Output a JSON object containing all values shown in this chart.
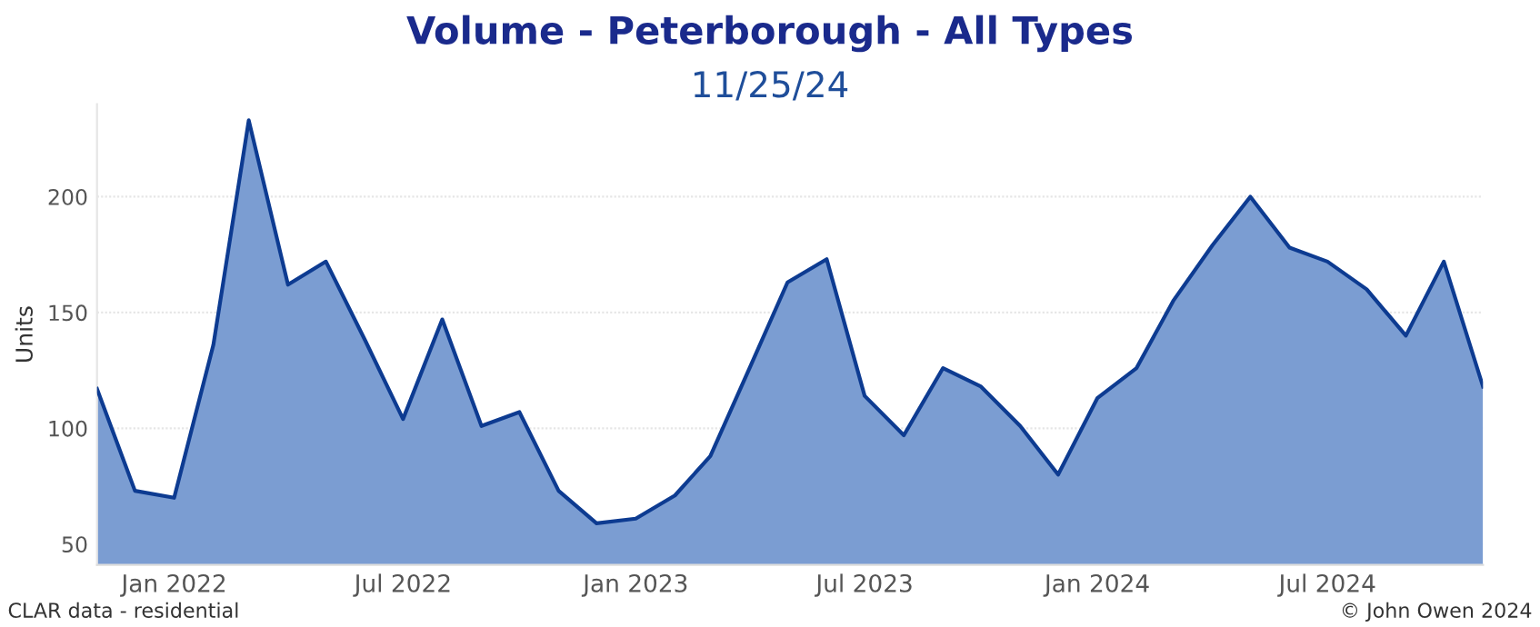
{
  "chart_data": {
    "type": "area",
    "title": "Volume - Peterborough - All Types",
    "subtitle": "11/25/24",
    "ylabel": "Units",
    "x": [
      "2021-11",
      "2021-12",
      "2022-01",
      "2022-02",
      "2022-03",
      "2022-04",
      "2022-05",
      "2022-06",
      "2022-07",
      "2022-08",
      "2022-09",
      "2022-10",
      "2022-11",
      "2022-12",
      "2023-01",
      "2023-02",
      "2023-03",
      "2023-04",
      "2023-05",
      "2023-06",
      "2023-07",
      "2023-08",
      "2023-09",
      "2023-10",
      "2023-11",
      "2023-12",
      "2024-01",
      "2024-02",
      "2024-03",
      "2024-04",
      "2024-05",
      "2024-06",
      "2024-07",
      "2024-08",
      "2024-09",
      "2024-10",
      "2024-11"
    ],
    "series": [
      {
        "color": "#7b9dd2",
        "values": [
          117,
          73,
          70,
          136,
          233,
          162,
          172,
          138,
          104,
          147,
          101,
          107,
          73,
          59,
          61,
          71,
          88,
          126,
          163,
          173,
          114,
          97,
          126,
          118,
          101,
          80,
          113,
          126,
          155,
          179,
          200,
          178,
          172,
          160,
          140,
          172,
          118
        ]
      }
    ],
    "xlim": [
      "2021-11",
      "2024-11"
    ],
    "xticks": [
      {
        "value": "2022-01",
        "label": "Jan 2022"
      },
      {
        "value": "2022-07",
        "label": "Jul 2022"
      },
      {
        "value": "2023-01",
        "label": "Jan 2023"
      },
      {
        "value": "2023-07",
        "label": "Jul 2023"
      },
      {
        "value": "2024-01",
        "label": "Jan 2024"
      },
      {
        "value": "2024-07",
        "label": "Jul 2024"
      }
    ],
    "ylim": [
      41,
      240
    ],
    "yticks": [
      50,
      100,
      150,
      200
    ],
    "grid": "y",
    "annotations": [
      "CLAR data - residential",
      "© John Owen 2024"
    ]
  }
}
